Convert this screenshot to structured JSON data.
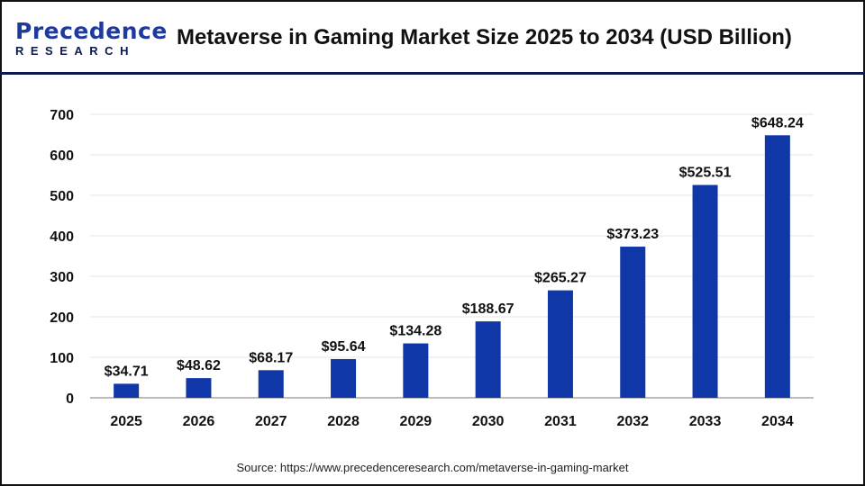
{
  "logo": {
    "line1": "Precedence",
    "line2": "RESEARCH"
  },
  "title": "Metaverse in Gaming Market Size 2025 to 2034 (USD Billion)",
  "source": "Source: https://www.precedenceresearch.com/metaverse-in-gaming-market",
  "colors": {
    "bar": "#0f37a8",
    "header_line": "#0d1b4c",
    "grid": "#e6e6e6",
    "axis": "#bdbdbd"
  },
  "chart_data": {
    "type": "bar",
    "title": "Metaverse in Gaming Market Size 2025 to 2034 (USD Billion)",
    "categories": [
      "2025",
      "2026",
      "2027",
      "2028",
      "2029",
      "2030",
      "2031",
      "2032",
      "2033",
      "2034"
    ],
    "values": [
      34.71,
      48.62,
      68.17,
      95.64,
      134.28,
      188.67,
      265.27,
      373.23,
      525.51,
      648.24
    ],
    "data_labels": [
      "$34.71",
      "$48.62",
      "$68.17",
      "$95.64",
      "$134.28",
      "$188.67",
      "$265.27",
      "$373.23",
      "$525.51",
      "$648.24"
    ],
    "yticks": [
      0,
      100,
      200,
      300,
      400,
      500,
      600,
      700
    ],
    "ylim": [
      0,
      700
    ],
    "xlabel": "",
    "ylabel": "",
    "grid": true,
    "legend": "none"
  }
}
